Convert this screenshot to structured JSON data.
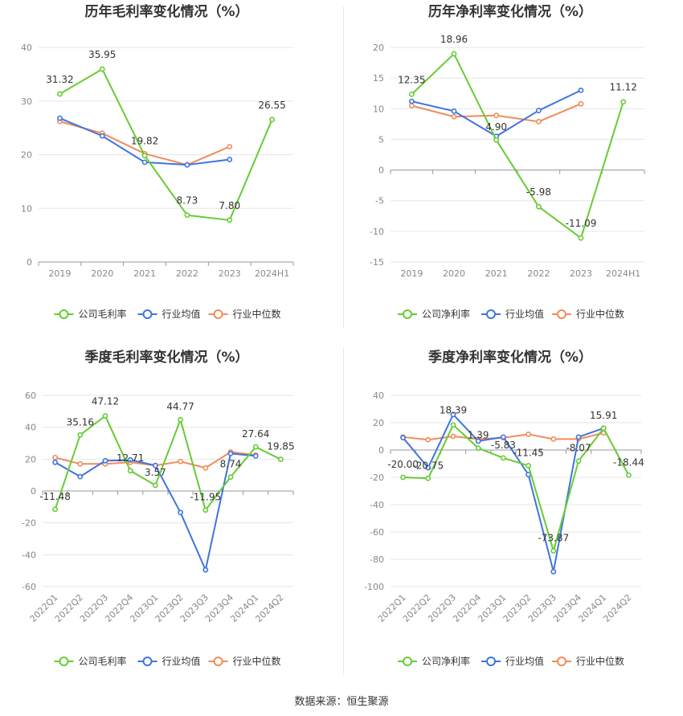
{
  "colors": {
    "company": "#66cc33",
    "avg": "#3f74e0",
    "median": "#f08c5a"
  },
  "source_text": "数据来源：恒生聚源",
  "chart_data": [
    {
      "type": "line",
      "title": "历年毛利率变化情况（%）",
      "categories": [
        "2019",
        "2020",
        "2021",
        "2022",
        "2023",
        "2024H1"
      ],
      "ylim": [
        0,
        40
      ],
      "yticks": [
        0,
        10,
        20,
        30,
        40
      ],
      "grid": true,
      "legend_position": "bottom",
      "series": [
        {
          "name": "公司毛利率",
          "values": [
            31.32,
            35.95,
            19.82,
            8.73,
            7.8,
            26.55
          ],
          "labels": [
            "31.32",
            "35.95",
            "19.82",
            "8.73",
            "7.80",
            "26.55"
          ]
        },
        {
          "name": "行业均值",
          "values": [
            26.8,
            23.5,
            18.6,
            18.1,
            19.1,
            null
          ]
        },
        {
          "name": "行业中位数",
          "values": [
            26.2,
            24.0,
            20.2,
            18.1,
            21.5,
            null
          ]
        }
      ]
    },
    {
      "type": "line",
      "title": "历年净利率变化情况（%）",
      "categories": [
        "2019",
        "2020",
        "2021",
        "2022",
        "2023",
        "2024H1"
      ],
      "ylim": [
        -15,
        20
      ],
      "yticks": [
        -15,
        -10,
        -5,
        0,
        5,
        10,
        15,
        20
      ],
      "grid": true,
      "legend_position": "bottom",
      "series": [
        {
          "name": "公司净利率",
          "values": [
            12.35,
            18.96,
            4.9,
            -5.98,
            -11.09,
            11.12
          ],
          "labels": [
            "12.35",
            "18.96",
            "4.90",
            "-5.98",
            "-11.09",
            "11.12"
          ]
        },
        {
          "name": "行业均值",
          "values": [
            11.2,
            9.6,
            5.5,
            9.7,
            13.0,
            null
          ]
        },
        {
          "name": "行业中位数",
          "values": [
            10.5,
            8.7,
            8.9,
            7.9,
            10.8,
            null
          ]
        }
      ]
    },
    {
      "type": "line",
      "title": "季度毛利率变化情况（%）",
      "categories": [
        "2022Q1",
        "2022Q2",
        "2022Q3",
        "2022Q4",
        "2023Q1",
        "2023Q2",
        "2023Q3",
        "2023Q4",
        "2024Q1",
        "2024Q2"
      ],
      "ylim": [
        -60,
        60
      ],
      "yticks": [
        -60,
        -40,
        -20,
        0,
        20,
        40,
        60
      ],
      "grid": true,
      "legend_position": "bottom",
      "series": [
        {
          "name": "公司毛利率",
          "values": [
            -11.48,
            35.16,
            47.12,
            12.71,
            3.57,
            44.77,
            -11.95,
            8.74,
            27.64,
            19.85
          ],
          "labels": [
            "-11.48",
            "35.16",
            "47.12",
            "12.71",
            "3.57",
            "44.77",
            "-11.95",
            "8.74",
            "27.64",
            "19.85"
          ]
        },
        {
          "name": "行业均值",
          "values": [
            18.0,
            9.0,
            19.0,
            19.5,
            16.0,
            -13.5,
            -49.5,
            23.5,
            22.0,
            null
          ]
        },
        {
          "name": "行业中位数",
          "values": [
            21.0,
            17.0,
            17.0,
            18.0,
            16.0,
            18.5,
            14.5,
            24.5,
            22.5,
            null
          ]
        }
      ]
    },
    {
      "type": "line",
      "title": "季度净利率变化情况（%）",
      "categories": [
        "2022Q1",
        "2022Q2",
        "2022Q3",
        "2022Q4",
        "2023Q1",
        "2023Q2",
        "2023Q3",
        "2023Q4",
        "2024Q1",
        "2024Q2"
      ],
      "ylim": [
        -100,
        40
      ],
      "yticks": [
        -100,
        -80,
        -60,
        -40,
        -20,
        0,
        20,
        40
      ],
      "grid": true,
      "legend_position": "bottom",
      "series": [
        {
          "name": "公司净利率",
          "values": [
            -20.0,
            -20.75,
            18.39,
            1.39,
            -5.83,
            -11.45,
            -73.87,
            -8.07,
            15.91,
            -18.44
          ],
          "labels": [
            "-20.00",
            "-20.75",
            "18.39",
            "1.39",
            "-5.83",
            "-11.45",
            "-73.87",
            "-8.07",
            "15.91",
            "-18.44"
          ]
        },
        {
          "name": "行业均值",
          "values": [
            9.0,
            -13.0,
            26.0,
            6.5,
            9.5,
            -18.0,
            -89.0,
            9.5,
            16.0,
            null
          ]
        },
        {
          "name": "行业中位数",
          "values": [
            9.5,
            7.5,
            10.0,
            8.0,
            9.0,
            11.5,
            8.0,
            8.0,
            12.5,
            null
          ]
        }
      ]
    }
  ]
}
